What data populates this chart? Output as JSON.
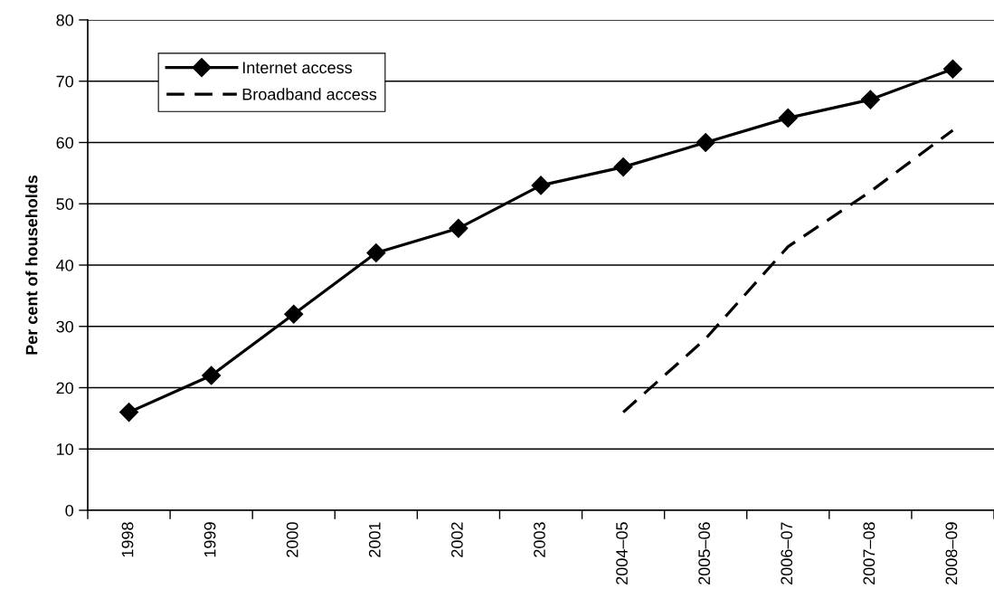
{
  "chart_data": {
    "type": "line",
    "ylabel": "Per cent of households",
    "categories": [
      "1998",
      "1999",
      "2000",
      "2001",
      "2002",
      "2003",
      "2004–05",
      "2005–06",
      "2006–07",
      "2007–08",
      "2008–09"
    ],
    "series": [
      {
        "name": "Internet access",
        "color": "#000000",
        "marker": "diamond",
        "line_style": "solid",
        "values": [
          16,
          22,
          32,
          42,
          46,
          53,
          56,
          60,
          64,
          67,
          72
        ]
      },
      {
        "name": "Broadband access",
        "color": "#000000",
        "marker": "none",
        "line_style": "dashed",
        "values": [
          null,
          null,
          null,
          null,
          null,
          null,
          16,
          28,
          43,
          52,
          62
        ]
      }
    ],
    "ylim": [
      0,
      80
    ],
    "yticks": [
      0,
      10,
      20,
      30,
      40,
      50,
      60,
      70,
      80
    ],
    "grid": "y",
    "legend": "top left"
  }
}
